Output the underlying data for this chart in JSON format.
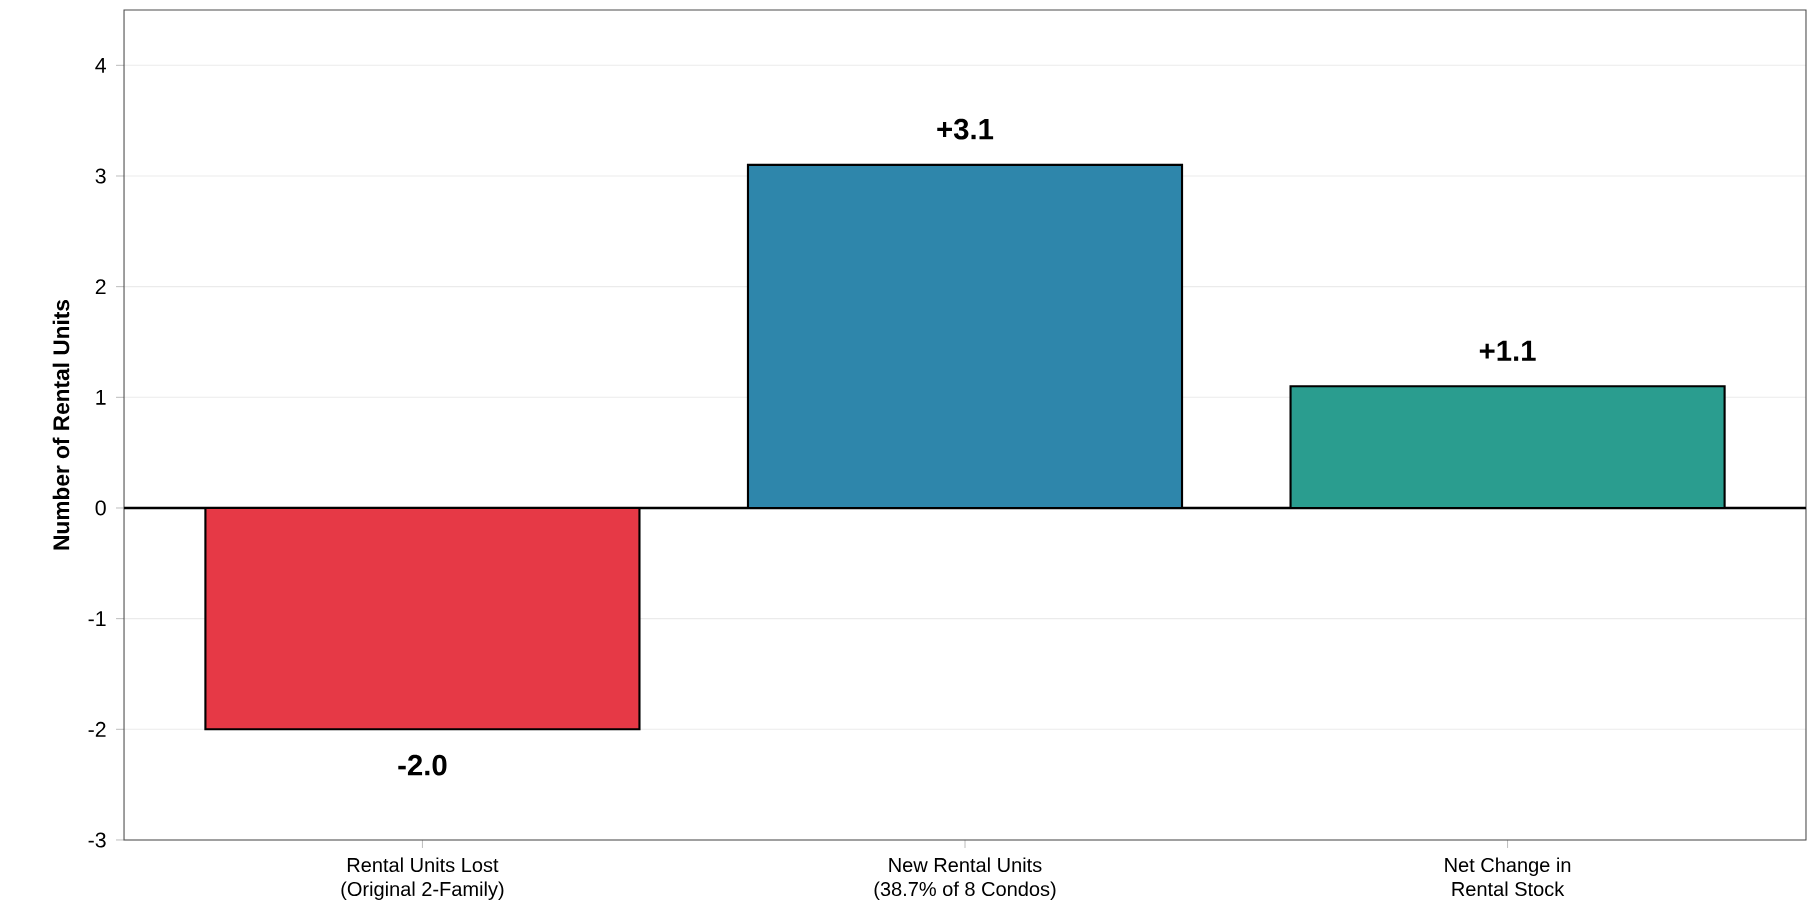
{
  "chart_data": {
    "type": "bar",
    "ylabel": "Number of Rental Units",
    "categories": [
      "Rental Units Lost (Original 2-Family)",
      "New Rental Units (38.7% of 8 Condos)",
      "Net Change in Rental Stock"
    ],
    "values": [
      -2.0,
      3.1,
      1.1
    ],
    "colors": [
      "#e63946",
      "#2e86ab",
      "#2a9d8f"
    ],
    "value_labels": [
      "-2.0",
      "+3.1",
      "+1.1"
    ],
    "ylim": [
      -3,
      4.5
    ],
    "yticks": [
      -3,
      -2,
      -1,
      0,
      1,
      2,
      3,
      4
    ],
    "grid": "y",
    "ref_lines": [
      {
        "axis": "y",
        "value": 0,
        "color": "#000000"
      }
    ]
  }
}
